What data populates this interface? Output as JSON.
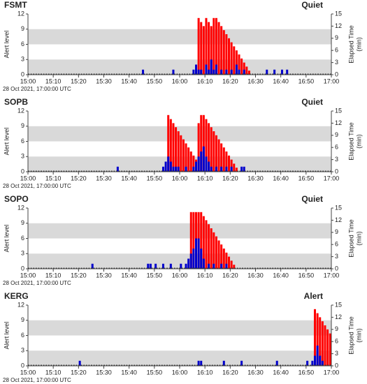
{
  "chart_data": [
    {
      "type": "bar",
      "title": "FSMT",
      "title_color": "#1aa31a",
      "status": "Quiet",
      "status_color": "#1aa31a",
      "ylabel": "Alert level",
      "y2label": [
        "Elapsed Time",
        "(min)"
      ],
      "footnote": "28 Oct 2021, 17:00:00 UTC",
      "xlim": [
        0,
        120
      ],
      "xticks": [
        {
          "value": 0,
          "label": "15:00"
        },
        {
          "value": 10,
          "label": "15:10"
        },
        {
          "value": 20,
          "label": "15:20"
        },
        {
          "value": 30,
          "label": "15:30"
        },
        {
          "value": 40,
          "label": "15:40"
        },
        {
          "value": 50,
          "label": "15:50"
        },
        {
          "value": 60,
          "label": "16:00"
        },
        {
          "value": 70,
          "label": "16:10"
        },
        {
          "value": 80,
          "label": "16:20"
        },
        {
          "value": 90,
          "label": "16:30"
        },
        {
          "value": 100,
          "label": "16:40"
        },
        {
          "value": 110,
          "label": "16:50"
        },
        {
          "value": 120,
          "label": "17:00"
        }
      ],
      "ylim": [
        0,
        12
      ],
      "yticks": [
        0,
        3,
        6,
        9,
        12
      ],
      "y2lim": [
        0,
        15
      ],
      "y2ticks": [
        0,
        3,
        6,
        9,
        12,
        15
      ],
      "bands": [
        [
          0,
          3
        ],
        [
          6,
          9
        ]
      ],
      "series": [
        {
          "color": "#ff0000",
          "axis": "y2",
          "x": [
            67,
            68,
            69,
            70,
            71,
            72,
            73,
            74,
            75,
            76,
            77,
            78,
            79,
            80,
            81,
            82,
            83,
            84,
            85,
            86,
            87
          ],
          "values": [
            14,
            13,
            12,
            14,
            13,
            12,
            14,
            14,
            13,
            12,
            11,
            10,
            9,
            8,
            7,
            6,
            5,
            4,
            3,
            2,
            1
          ]
        },
        {
          "color": "#0000cc",
          "axis": "y",
          "x": [
            45,
            57,
            65,
            66,
            67,
            68,
            70,
            71,
            72,
            73,
            74,
            76,
            78,
            80,
            82,
            83,
            85,
            94,
            97,
            100,
            102
          ],
          "values": [
            1,
            1,
            1,
            2,
            1,
            1,
            2,
            1,
            3,
            1,
            2,
            1,
            1,
            1,
            2,
            1,
            1,
            1,
            1,
            1,
            1
          ]
        }
      ]
    },
    {
      "type": "bar",
      "title": "SOPB",
      "title_color": "#1aa31a",
      "status": "Quiet",
      "status_color": "#1aa31a",
      "ylabel": "Alert level",
      "y2label": [
        "Elapsed Time",
        "(min)"
      ],
      "footnote": "28 Oct 2021, 17:00:00 UTC",
      "xlim": [
        0,
        120
      ],
      "xticks": [
        {
          "value": 0,
          "label": "15:00"
        },
        {
          "value": 10,
          "label": "15:10"
        },
        {
          "value": 20,
          "label": "15:20"
        },
        {
          "value": 30,
          "label": "15:30"
        },
        {
          "value": 40,
          "label": "15:40"
        },
        {
          "value": 50,
          "label": "15:50"
        },
        {
          "value": 60,
          "label": "16:00"
        },
        {
          "value": 70,
          "label": "16:10"
        },
        {
          "value": 80,
          "label": "16:20"
        },
        {
          "value": 90,
          "label": "16:30"
        },
        {
          "value": 100,
          "label": "16:40"
        },
        {
          "value": 110,
          "label": "16:50"
        },
        {
          "value": 120,
          "label": "17:00"
        }
      ],
      "ylim": [
        0,
        12
      ],
      "yticks": [
        0,
        3,
        6,
        9,
        12
      ],
      "y2lim": [
        0,
        15
      ],
      "y2ticks": [
        0,
        3,
        6,
        9,
        12,
        15
      ],
      "bands": [
        [
          0,
          3
        ],
        [
          6,
          9
        ]
      ],
      "series": [
        {
          "color": "#ff0000",
          "axis": "y2",
          "x": [
            55,
            56,
            57,
            58,
            59,
            60,
            61,
            62,
            63,
            64,
            65,
            66,
            67,
            68,
            69,
            70,
            71,
            72,
            73,
            74,
            75,
            76,
            77,
            78,
            79,
            80,
            81,
            82
          ],
          "values": [
            14,
            13,
            12,
            11,
            10,
            9,
            8,
            7,
            6,
            5,
            4,
            3,
            12,
            14,
            14,
            13,
            12,
            11,
            10,
            9,
            8,
            7,
            6,
            5,
            4,
            3,
            2,
            1
          ]
        },
        {
          "color": "#0000cc",
          "axis": "y",
          "x": [
            35,
            53,
            54,
            55,
            56,
            57,
            58,
            59,
            62,
            65,
            66,
            67,
            68,
            69,
            70,
            71,
            72,
            74,
            76,
            78,
            80,
            84,
            85
          ],
          "values": [
            1,
            1,
            2,
            3,
            2,
            1,
            1,
            1,
            1,
            1,
            2,
            3,
            4,
            5,
            3,
            2,
            1,
            1,
            1,
            1,
            1,
            1,
            1
          ]
        }
      ]
    },
    {
      "type": "bar",
      "title": "SOPO",
      "title_color": "#1aa31a",
      "status": "Quiet",
      "status_color": "#1aa31a",
      "ylabel": "Alert level",
      "y2label": [
        "Elapsed Time",
        "(min)"
      ],
      "footnote": "28 Oct 2021, 17:00:00 UTC",
      "xlim": [
        0,
        120
      ],
      "xticks": [
        {
          "value": 0,
          "label": "15:00"
        },
        {
          "value": 10,
          "label": "15:10"
        },
        {
          "value": 20,
          "label": "15:20"
        },
        {
          "value": 30,
          "label": "15:30"
        },
        {
          "value": 40,
          "label": "15:40"
        },
        {
          "value": 50,
          "label": "15:50"
        },
        {
          "value": 60,
          "label": "16:00"
        },
        {
          "value": 70,
          "label": "16:10"
        },
        {
          "value": 80,
          "label": "16:20"
        },
        {
          "value": 90,
          "label": "16:30"
        },
        {
          "value": 100,
          "label": "16:40"
        },
        {
          "value": 110,
          "label": "16:50"
        },
        {
          "value": 120,
          "label": "17:00"
        }
      ],
      "ylim": [
        0,
        12
      ],
      "yticks": [
        0,
        3,
        6,
        9,
        12
      ],
      "y2lim": [
        0,
        15
      ],
      "y2ticks": [
        0,
        3,
        6,
        9,
        12,
        15
      ],
      "bands": [
        [
          0,
          3
        ],
        [
          6,
          9
        ]
      ],
      "series": [
        {
          "color": "#ff0000",
          "axis": "y2",
          "x": [
            64,
            65,
            66,
            67,
            68,
            69,
            70,
            71,
            72,
            73,
            74,
            75,
            76,
            77,
            78,
            79,
            80,
            81
          ],
          "values": [
            14,
            14,
            14,
            14,
            14,
            13,
            12,
            11,
            10,
            9,
            8,
            7,
            6,
            5,
            4,
            3,
            2,
            1
          ]
        },
        {
          "color": "#0000cc",
          "axis": "y",
          "x": [
            25,
            47,
            48,
            50,
            53,
            56,
            60,
            62,
            63,
            64,
            65,
            66,
            67,
            68,
            69,
            71,
            73,
            76,
            78
          ],
          "values": [
            1,
            1,
            1,
            1,
            1,
            1,
            1,
            1,
            2,
            3,
            4,
            6,
            6,
            4,
            2,
            1,
            1,
            1,
            1
          ]
        }
      ]
    },
    {
      "type": "bar",
      "title": "KERG",
      "title_color": "#ee1111",
      "status": "Alert",
      "status_color": "#ee1111",
      "ylabel": "Alert level",
      "y2label": [
        "Elapsed Time",
        "(min)"
      ],
      "footnote": "28 Oct 2021, 17:00:00 UTC",
      "xlim": [
        0,
        120
      ],
      "xticks": [
        {
          "value": 0,
          "label": "15:00"
        },
        {
          "value": 10,
          "label": "15:10"
        },
        {
          "value": 20,
          "label": "15:20"
        },
        {
          "value": 30,
          "label": "15:30"
        },
        {
          "value": 40,
          "label": "15:40"
        },
        {
          "value": 50,
          "label": "15:50"
        },
        {
          "value": 60,
          "label": "16:00"
        },
        {
          "value": 70,
          "label": "16:10"
        },
        {
          "value": 80,
          "label": "16:20"
        },
        {
          "value": 90,
          "label": "16:30"
        },
        {
          "value": 100,
          "label": "16:40"
        },
        {
          "value": 110,
          "label": "16:50"
        },
        {
          "value": 120,
          "label": "17:00"
        }
      ],
      "ylim": [
        0,
        12
      ],
      "yticks": [
        0,
        3,
        6,
        9,
        12
      ],
      "y2lim": [
        0,
        15
      ],
      "y2ticks": [
        0,
        3,
        6,
        9,
        12,
        15
      ],
      "bands": [
        [
          0,
          3
        ],
        [
          6,
          9
        ]
      ],
      "series": [
        {
          "color": "#ff0000",
          "axis": "y2",
          "x": [
            113,
            114,
            115,
            116,
            117,
            118,
            119
          ],
          "values": [
            14,
            13,
            12,
            11,
            10,
            9,
            8
          ]
        },
        {
          "color": "#0000cc",
          "axis": "y",
          "x": [
            20,
            67,
            68,
            77,
            84,
            98,
            110,
            112,
            113,
            114,
            115,
            116
          ],
          "values": [
            1,
            1,
            1,
            1,
            1,
            1,
            1,
            1,
            2,
            4,
            2,
            1
          ]
        }
      ]
    }
  ]
}
